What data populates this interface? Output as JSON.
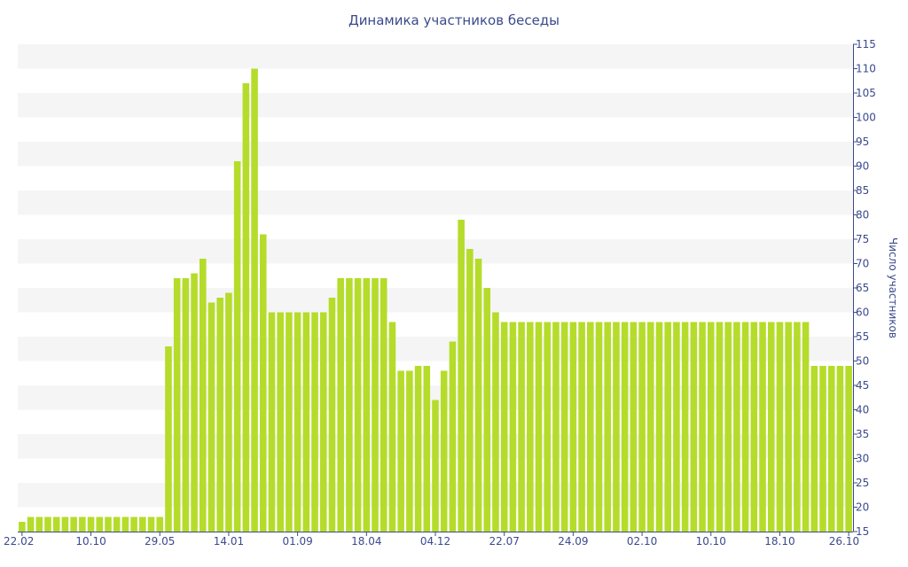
{
  "chart_data": {
    "type": "bar",
    "title": "Динамика участников беседы",
    "xlabel": "",
    "ylabel": "Число участников",
    "ylim": [
      15,
      115
    ],
    "y_axis_position": "right",
    "y_ticks": [
      15,
      20,
      25,
      30,
      35,
      40,
      45,
      50,
      55,
      60,
      65,
      70,
      75,
      80,
      85,
      90,
      95,
      100,
      105,
      110,
      115
    ],
    "x_tick_labels": [
      "22.02",
      "10.10",
      "29.05",
      "14.01",
      "01.09",
      "18.04",
      "04.12",
      "22.07",
      "24.09",
      "02.10",
      "10.10",
      "18.10",
      "26.10"
    ],
    "x_tick_bar_index": [
      0,
      8,
      16,
      24,
      32,
      40,
      48,
      56,
      64,
      72,
      80,
      88,
      96
    ],
    "grid": "horizontal bands",
    "bar_color": "#b5dc2a",
    "band_color": "#f5f5f5",
    "text_color": "#3b4a8c",
    "values": [
      17,
      18,
      18,
      18,
      18,
      18,
      18,
      18,
      18,
      18,
      18,
      18,
      18,
      18,
      18,
      18,
      18,
      53,
      67,
      67,
      68,
      71,
      62,
      63,
      64,
      91,
      107,
      110,
      76,
      60,
      60,
      60,
      60,
      60,
      60,
      60,
      63,
      67,
      67,
      67,
      67,
      67,
      67,
      58,
      48,
      48,
      49,
      49,
      42,
      48,
      54,
      79,
      73,
      71,
      65,
      60,
      58,
      58,
      58,
      58,
      58,
      58,
      58,
      58,
      58,
      58,
      58,
      58,
      58,
      58,
      58,
      58,
      58,
      58,
      58,
      58,
      58,
      58,
      58,
      58,
      58,
      58,
      58,
      58,
      58,
      58,
      58,
      58,
      58,
      58,
      58,
      58,
      49,
      49,
      49,
      49,
      49
    ]
  }
}
